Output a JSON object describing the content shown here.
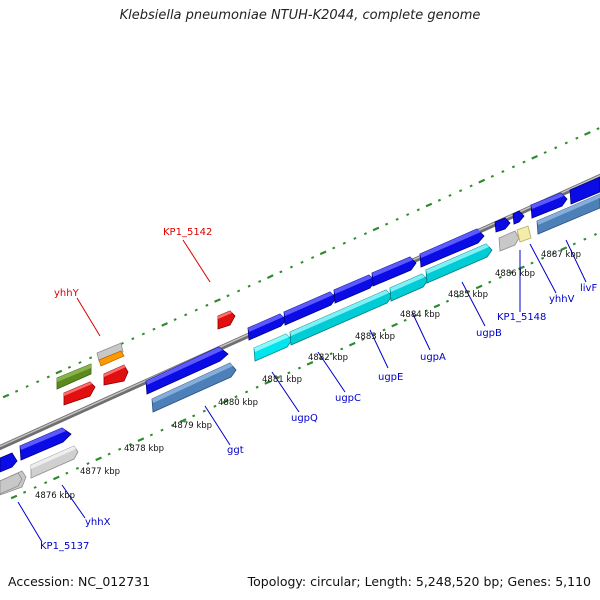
{
  "header": {
    "title": "Klebsiella pneumoniae NTUH-K2044, complete genome"
  },
  "footer": {
    "accession": "Accession: NC_012731",
    "summary": "Topology: circular; Length: 5,248,520 bp; Genes: 5,110"
  },
  "colors": {
    "backbone": "#8a8a8a",
    "tick_dots": "#2e8b2e",
    "cds_forward": "#0b0be6",
    "cds_reverse": "#4d7fb8",
    "cds_cyan": "#00e5ee",
    "cds_gray": "#c8c8c8",
    "rna_red": "#e01010",
    "olive": "#5c8a1e",
    "orange": "#ff9900",
    "pale_yellow": "#f5ecaa",
    "label_blue": "#0000cc",
    "label_red": "#dd0000"
  },
  "scale": {
    "ticks": [
      "4876 kbp",
      "4877 kbp",
      "4878 kbp",
      "4879 kbp",
      "4880 kbp",
      "4881 kbp",
      "4882 kbp",
      "4883 kbp",
      "4884 kbp",
      "4885 kbp",
      "4886 kbp",
      "4887 kbp"
    ]
  },
  "genes": {
    "reverse": [
      "KP1_5137",
      "yhhX",
      "ggt",
      "ugpQ",
      "ugpC",
      "ugpE",
      "ugpA",
      "ugpB",
      "KP1_5148",
      "yhhV",
      "livF"
    ],
    "forward": [
      "yhhY",
      "KP1_5142"
    ]
  }
}
